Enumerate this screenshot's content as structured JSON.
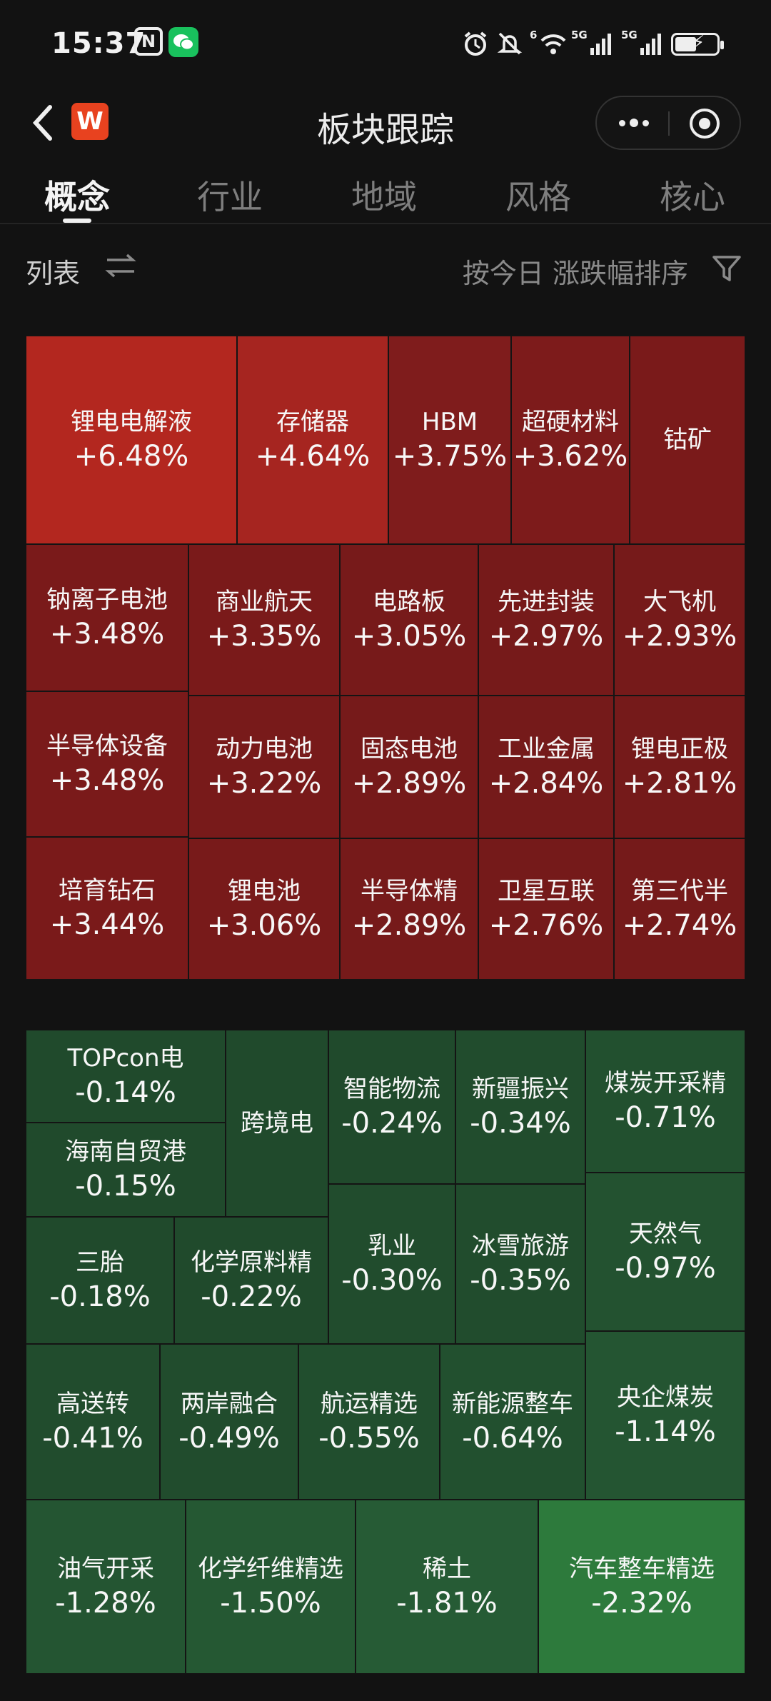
{
  "status_bar": {
    "time": "15:37",
    "n_label": "N",
    "net_label": "5G",
    "wifi_label": "6"
  },
  "header": {
    "title": "板块跟踪",
    "back_glyph": "‹",
    "logo_letter": "W"
  },
  "tabs": [
    {
      "label": "概念",
      "active": true
    },
    {
      "label": "行业",
      "active": false
    },
    {
      "label": "地域",
      "active": false
    },
    {
      "label": "风格",
      "active": false
    },
    {
      "label": "核心",
      "active": false
    }
  ],
  "toolbar": {
    "list_label": "列表",
    "sort_label": "按今日 涨跌幅排序"
  },
  "colors": {
    "red_bright": "#b3271f",
    "red_mid": "#9b2422",
    "red_dark": "#7c1b1b",
    "green": "#204a2c",
    "green_bright": "#2d7a3c"
  },
  "sectors_up": [
    {
      "name": "锂电电解液",
      "change": "+6.48%"
    },
    {
      "name": "存储器",
      "change": "+4.64%"
    },
    {
      "name": "HBM",
      "change": "+3.75%"
    },
    {
      "name": "超硬材料",
      "change": "+3.62%"
    },
    {
      "name": "钴矿",
      "change": ""
    },
    {
      "name": "钠离子电池",
      "change": "+3.48%"
    },
    {
      "name": "商业航天",
      "change": "+3.35%"
    },
    {
      "name": "电路板",
      "change": "+3.05%"
    },
    {
      "name": "先进封装",
      "change": "+2.97%"
    },
    {
      "name": "大飞机",
      "change": "+2.93%"
    },
    {
      "name": "半导体设备",
      "change": "+3.48%"
    },
    {
      "name": "动力电池",
      "change": "+3.22%"
    },
    {
      "name": "固态电池",
      "change": "+2.89%"
    },
    {
      "name": "工业金属",
      "change": "+2.84%"
    },
    {
      "name": "锂电正极",
      "change": "+2.81%"
    },
    {
      "name": "培育钻石",
      "change": "+3.44%"
    },
    {
      "name": "锂电池",
      "change": "+3.06%"
    },
    {
      "name": "半导体精",
      "change": "+2.89%"
    },
    {
      "name": "卫星互联",
      "change": "+2.76%"
    },
    {
      "name": "第三代半",
      "change": "+2.74%"
    }
  ],
  "sectors_down": [
    {
      "name": "TOPcon电",
      "change": "-0.14%"
    },
    {
      "name": "跨境电",
      "change": ""
    },
    {
      "name": "智能物流",
      "change": "-0.24%"
    },
    {
      "name": "新疆振兴",
      "change": "-0.34%"
    },
    {
      "name": "煤炭开采精",
      "change": "-0.71%"
    },
    {
      "name": "海南自贸港",
      "change": "-0.15%"
    },
    {
      "name": "三胎",
      "change": "-0.18%"
    },
    {
      "name": "化学原料精",
      "change": "-0.22%"
    },
    {
      "name": "乳业",
      "change": "-0.30%"
    },
    {
      "name": "冰雪旅游",
      "change": "-0.35%"
    },
    {
      "name": "天然气",
      "change": "-0.97%"
    },
    {
      "name": "高送转",
      "change": "-0.41%"
    },
    {
      "name": "两岸融合",
      "change": "-0.49%"
    },
    {
      "name": "航运精选",
      "change": "-0.55%"
    },
    {
      "name": "新能源整车",
      "change": "-0.64%"
    },
    {
      "name": "央企煤炭",
      "change": "-1.14%"
    },
    {
      "name": "油气开采",
      "change": "-1.28%"
    },
    {
      "name": "化学纤维精选",
      "change": "-1.50%"
    },
    {
      "name": "稀土",
      "change": "-1.81%"
    },
    {
      "name": "汽车整车精选",
      "change": "-2.32%"
    }
  ]
}
